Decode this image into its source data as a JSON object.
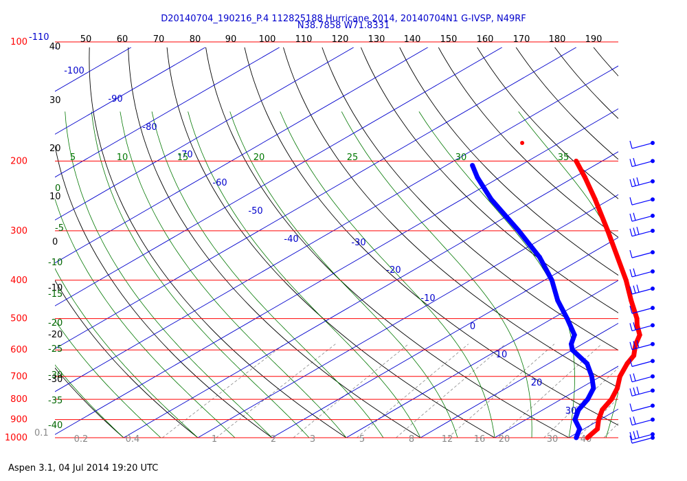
{
  "header": {
    "line1": "D20140704_190216_P.4 112825188 Hurricane 2014, 20140704N1 G-IVSP, N49RF",
    "line2": "N38.7858 W71.8331"
  },
  "footer": {
    "text": "Aspen 3.1, 04 Jul 2014  19:20 UTC"
  },
  "chart_data": {
    "type": "line",
    "title": "D20140704_190216_P.4 112825188 Hurricane 2014, 20140704N1 G-IVSP, N49RF",
    "subtitle": "N38.7858 W71.8331",
    "pressure_labels": [
      "100",
      "200",
      "300",
      "400",
      "500",
      "600",
      "700",
      "800",
      "900",
      "1000"
    ],
    "pressure_levels": [
      100,
      200,
      300,
      400,
      500,
      600,
      700,
      800,
      900,
      1000
    ],
    "top_axis_labels": [
      "-110",
      "40",
      "50",
      "60",
      "70",
      "80",
      "90",
      "100",
      "110",
      "120",
      "130",
      "140",
      "150",
      "160",
      "170",
      "180",
      "190"
    ],
    "left_axis_labels": [
      {
        "text": "40",
        "color": "#000000"
      },
      {
        "text": "30",
        "color": "#000000"
      },
      {
        "text": "20",
        "color": "#000000"
      },
      {
        "text": "10",
        "color": "#000000"
      },
      {
        "text": "0",
        "color": "#006600"
      },
      {
        "text": "-5",
        "color": "#006600"
      },
      {
        "text": "0",
        "color": "#000000"
      },
      {
        "text": "-10",
        "color": "#006600"
      },
      {
        "text": "-10",
        "color": "#000000"
      },
      {
        "text": "-15",
        "color": "#006600"
      },
      {
        "text": "-20",
        "color": "#006600"
      },
      {
        "text": "-20",
        "color": "#000000"
      },
      {
        "text": "-25",
        "color": "#006600"
      },
      {
        "text": "-30",
        "color": "#006600"
      },
      {
        "text": "-30",
        "color": "#000000"
      },
      {
        "text": "-35",
        "color": "#006600"
      },
      {
        "text": "-40",
        "color": "#006600"
      },
      {
        "text": "0.1",
        "color": "#888888"
      }
    ],
    "isotherm_labels": [
      "-100",
      "-90",
      "-80",
      "-70",
      "-60",
      "-50",
      "-40",
      "-30",
      "-20",
      "-10",
      "0",
      "10",
      "20",
      "30"
    ],
    "moist_adiabat_labels": [
      "5",
      "10",
      "15",
      "20",
      "25",
      "30",
      "35"
    ],
    "mixing_ratio_labels": [
      "0.2",
      "0.4",
      "1",
      "2",
      "3",
      "5",
      "8",
      "12",
      "16",
      "20",
      "30",
      "40"
    ],
    "series": [
      {
        "role": "temperature",
        "color": "#ff0000",
        "points": [
          {
            "p": 1000,
            "t": 22.5
          },
          {
            "p": 950,
            "t": 21.8
          },
          {
            "p": 900,
            "t": 19.8
          },
          {
            "p": 850,
            "t": 18.0
          },
          {
            "p": 800,
            "t": 16.8
          },
          {
            "p": 750,
            "t": 15.0
          },
          {
            "p": 700,
            "t": 12.6
          },
          {
            "p": 650,
            "t": 10.6
          },
          {
            "p": 620,
            "t": 9.6
          },
          {
            "p": 600,
            "t": 8.4
          },
          {
            "p": 580,
            "t": 7.2
          },
          {
            "p": 550,
            "t": 5.6
          },
          {
            "p": 520,
            "t": 3.0
          },
          {
            "p": 500,
            "t": 1.4
          },
          {
            "p": 450,
            "t": -3.6
          },
          {
            "p": 400,
            "t": -9.0
          },
          {
            "p": 350,
            "t": -15.5
          },
          {
            "p": 300,
            "t": -23.0
          },
          {
            "p": 250,
            "t": -32.0
          },
          {
            "p": 220,
            "t": -38.5
          },
          {
            "p": 200,
            "t": -43.5
          }
        ],
        "outlier": {
          "p": 180,
          "t": -55.0
        }
      },
      {
        "role": "dewpoint",
        "color": "#0000ff",
        "points": [
          {
            "p": 1000,
            "t": 21.0
          },
          {
            "p": 950,
            "t": 19.4
          },
          {
            "p": 900,
            "t": 16.6
          },
          {
            "p": 850,
            "t": 14.8
          },
          {
            "p": 800,
            "t": 13.6
          },
          {
            "p": 750,
            "t": 11.8
          },
          {
            "p": 700,
            "t": 8.8
          },
          {
            "p": 650,
            "t": 5.2
          },
          {
            "p": 600,
            "t": 0.0
          },
          {
            "p": 580,
            "t": -1.5
          },
          {
            "p": 550,
            "t": -3.2
          },
          {
            "p": 500,
            "t": -8.0
          },
          {
            "p": 450,
            "t": -13.5
          },
          {
            "p": 400,
            "t": -19.0
          },
          {
            "p": 350,
            "t": -26.0
          },
          {
            "p": 300,
            "t": -35.0
          },
          {
            "p": 250,
            "t": -46.0
          },
          {
            "p": 220,
            "t": -53.0
          },
          {
            "p": 205,
            "t": -56.5
          }
        ]
      }
    ],
    "wind_barb_levels": [
      180,
      200,
      225,
      250,
      275,
      300,
      340,
      380,
      420,
      470,
      520,
      580,
      640,
      700,
      760,
      830,
      900,
      980,
      1000
    ],
    "grid": true,
    "colors": {
      "isobar": "#ff0000",
      "pressure_label": "#ff0000",
      "isotherm": "#0000cc",
      "dry_adiabat": "#000000",
      "moist_adiabat": "#007700",
      "mixing_ratio": "#888888",
      "temperature": "#ff0000",
      "dewpoint": "#0000ff",
      "barb": "#0000ff"
    }
  }
}
